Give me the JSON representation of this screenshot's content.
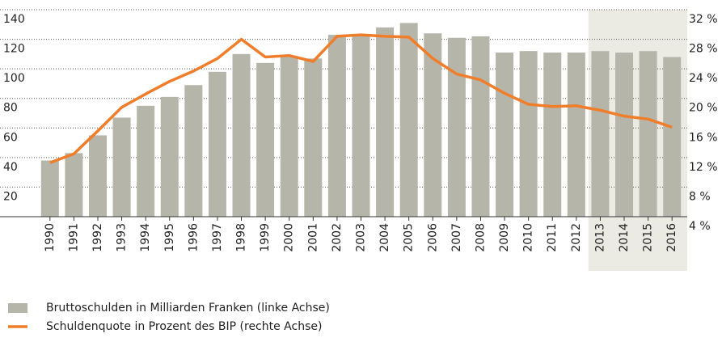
{
  "chart_data": {
    "type": "bar",
    "categories": [
      "1990",
      "1991",
      "1992",
      "1993",
      "1994",
      "1995",
      "1996",
      "1997",
      "1998",
      "1999",
      "2000",
      "2001",
      "2002",
      "2003",
      "2004",
      "2005",
      "2006",
      "2007",
      "2008",
      "2009",
      "2010",
      "2011",
      "2012",
      "2013",
      "2014",
      "2015",
      "2016"
    ],
    "series": [
      {
        "name": "Bruttoschulden in Milliarden Franken (linke Achse)",
        "type": "bar",
        "color": "#b5b5aa",
        "values": [
          38,
          43,
          55,
          67,
          75,
          81,
          89,
          98,
          110,
          104,
          108,
          107,
          123,
          123,
          128,
          131,
          124,
          121,
          122,
          111,
          112,
          111,
          111,
          112,
          111,
          112,
          108
        ]
      },
      {
        "name": "Schuldenquote in Prozent des BIP (rechte Achse)",
        "type": "line",
        "axis": "y2",
        "color": "#f07d2a",
        "values": [
          11.3,
          12.5,
          15.6,
          18.8,
          20.6,
          22.3,
          23.7,
          25.4,
          28.0,
          25.6,
          25.8,
          25.0,
          28.4,
          28.6,
          28.4,
          28.3,
          25.4,
          23.3,
          22.5,
          20.7,
          19.2,
          18.9,
          19.0,
          18.4,
          17.6,
          17.2,
          16.1
        ]
      }
    ],
    "ylim": [
      0,
      140
    ],
    "yticks": [
      20,
      40,
      60,
      80,
      100,
      120,
      140
    ],
    "y2lim": [
      4,
      32
    ],
    "y2ticks": [
      {
        "value": 4,
        "label": "4 %"
      },
      {
        "value": 8,
        "label": "8 %"
      },
      {
        "value": 12,
        "label": "12 %"
      },
      {
        "value": 16,
        "label": "16 %"
      },
      {
        "value": 20,
        "label": "20 %"
      },
      {
        "value": 24,
        "label": "24 %"
      },
      {
        "value": 28,
        "label": "28 %"
      },
      {
        "value": 32,
        "label": "32 %"
      }
    ],
    "grid": true,
    "legend": "bottom-left",
    "highlight": {
      "from": "2013",
      "to": "2016"
    }
  }
}
